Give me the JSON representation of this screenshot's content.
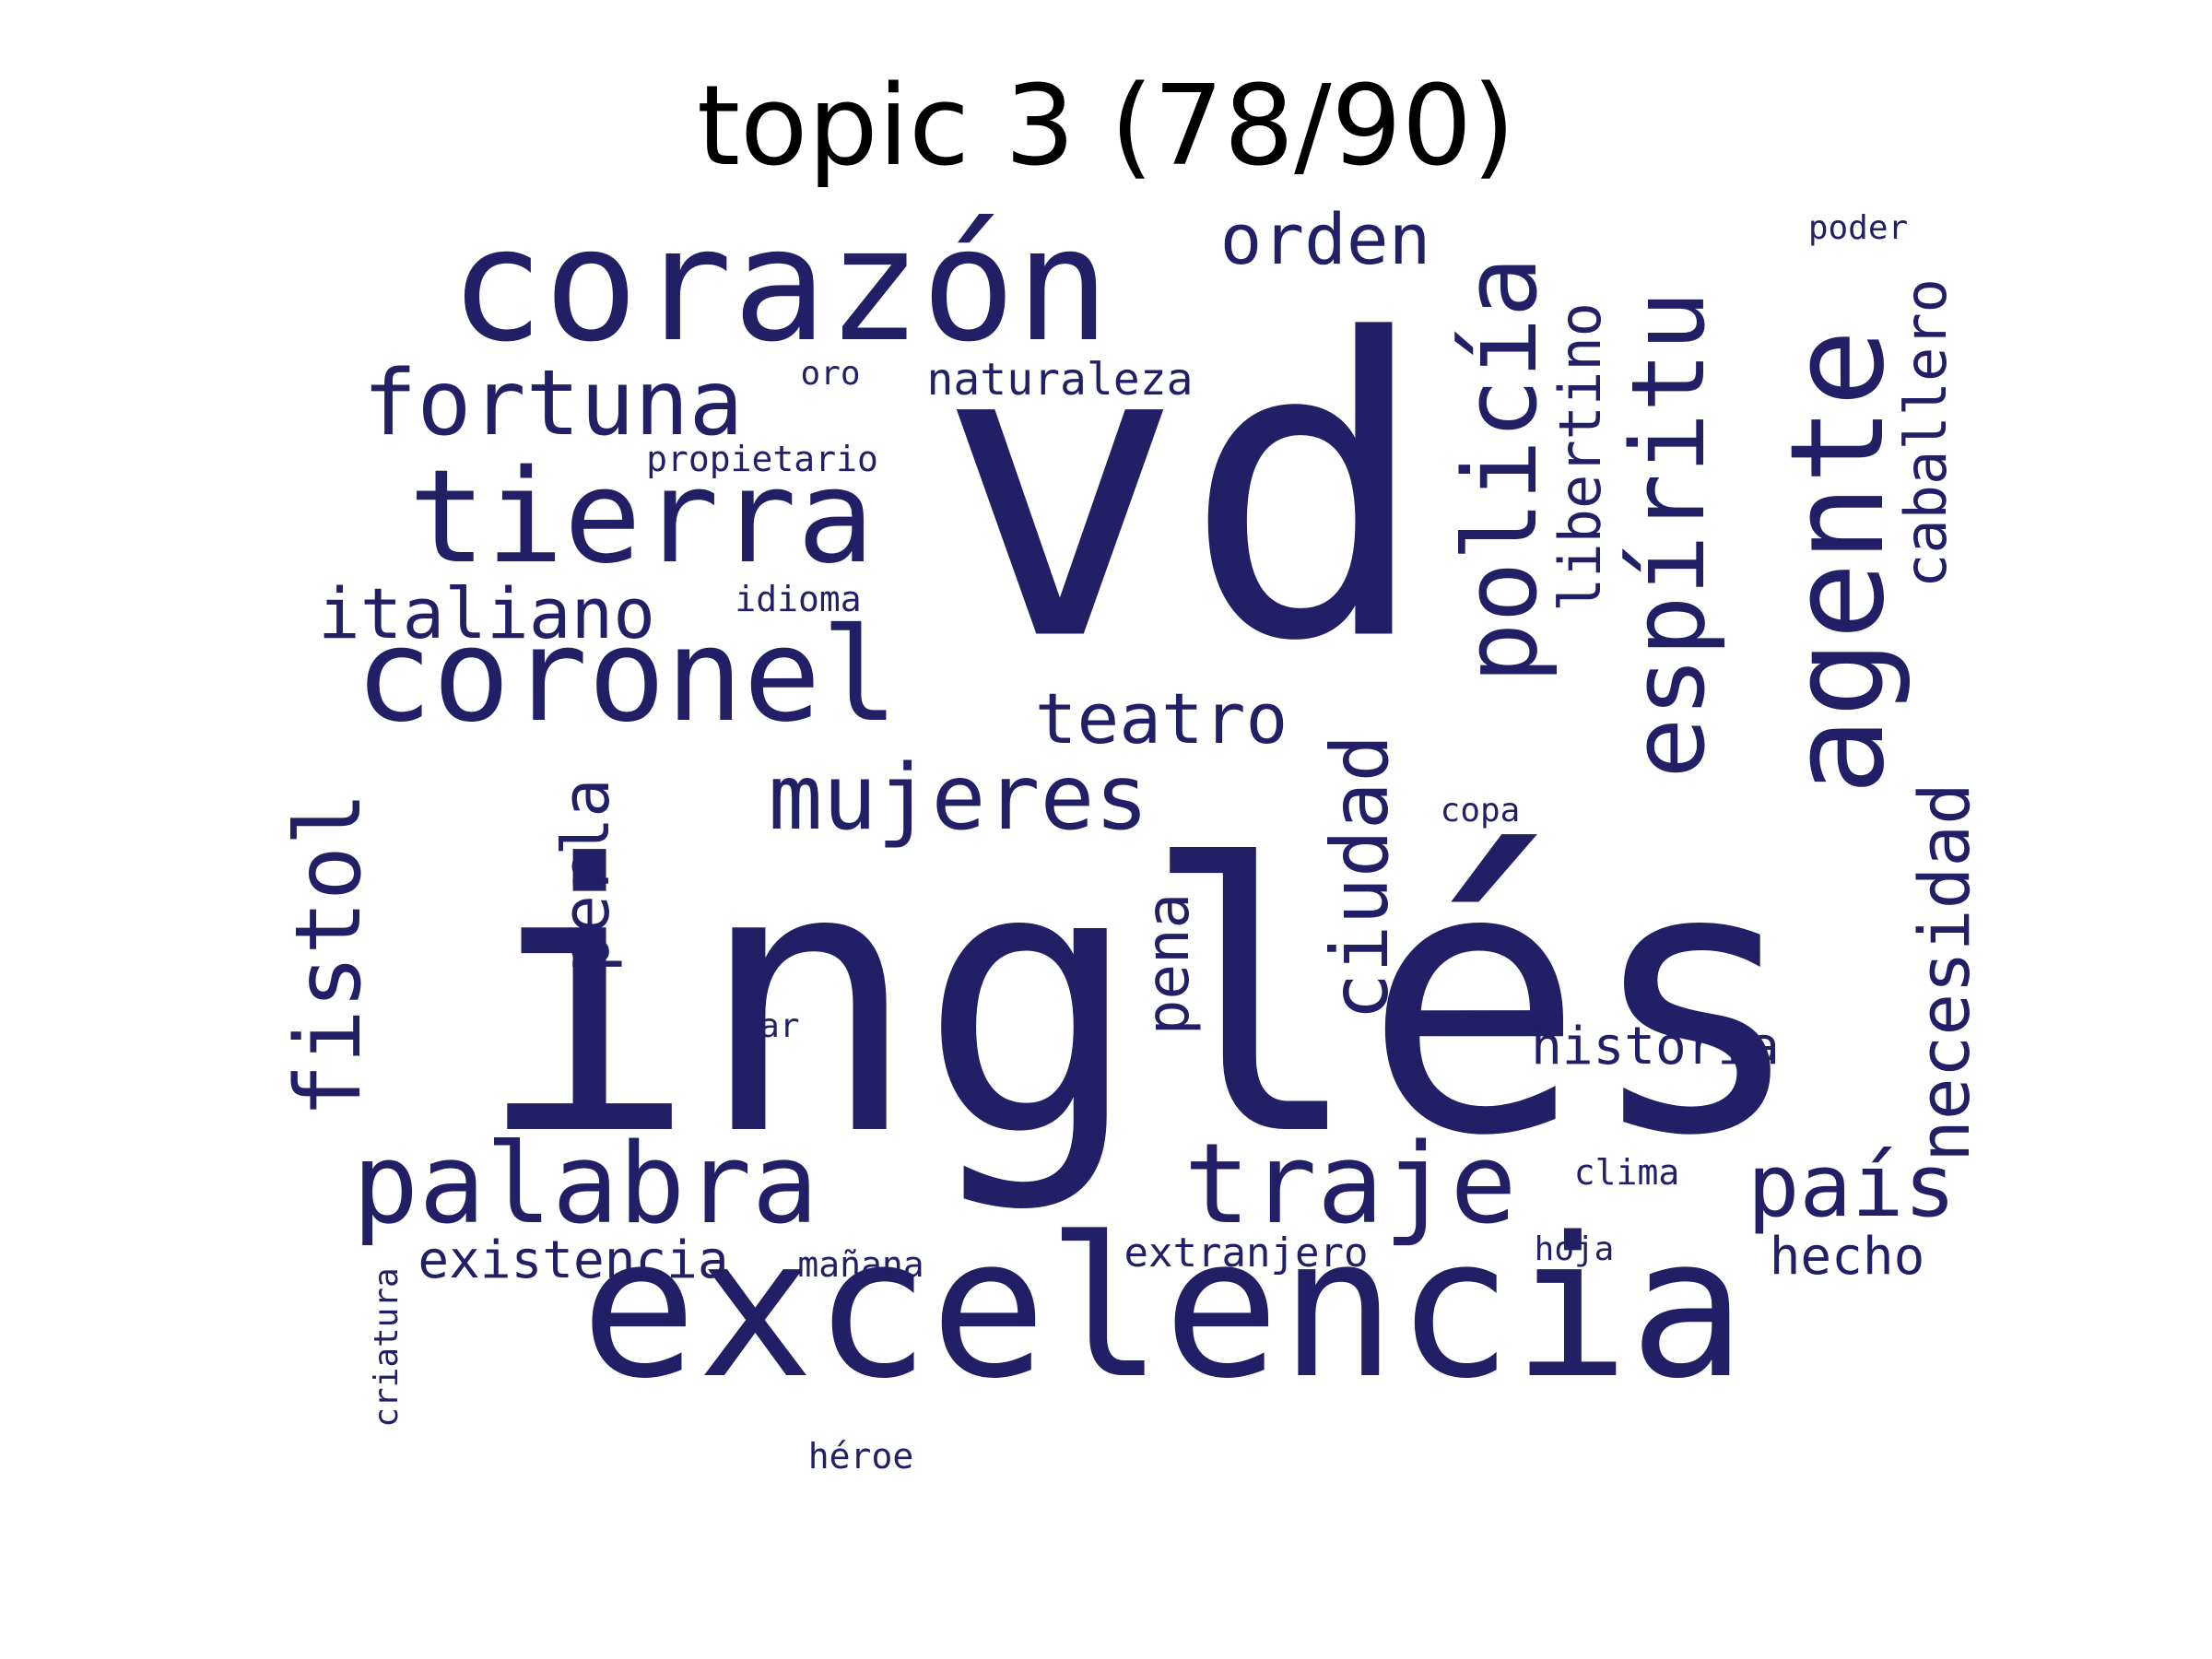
{
  "title": "topic 3 (78/90)",
  "word_color": "#221f66",
  "words": [
    {
      "text": "inglés",
      "orientation": "horizontal"
    },
    {
      "text": "vd",
      "orientation": "horizontal"
    },
    {
      "text": "excelencia",
      "orientation": "horizontal"
    },
    {
      "text": "corazón",
      "orientation": "horizontal"
    },
    {
      "text": "coronel",
      "orientation": "horizontal"
    },
    {
      "text": "tierra",
      "orientation": "horizontal"
    },
    {
      "text": "agente",
      "orientation": "vertical"
    },
    {
      "text": "espíritu",
      "orientation": "vertical"
    },
    {
      "text": "policía",
      "orientation": "vertical"
    },
    {
      "text": "palabra",
      "orientation": "horizontal"
    },
    {
      "text": "traje",
      "orientation": "horizontal"
    },
    {
      "text": "fortuna",
      "orientation": "horizontal"
    },
    {
      "text": "fistol",
      "orientation": "vertical"
    },
    {
      "text": "mujeres",
      "orientation": "horizontal"
    },
    {
      "text": "ciudad",
      "orientation": "vertical"
    },
    {
      "text": "país",
      "orientation": "horizontal"
    },
    {
      "text": "necesidad",
      "orientation": "vertical"
    },
    {
      "text": "italiano",
      "orientation": "horizontal"
    },
    {
      "text": "libertino",
      "orientation": "vertical"
    },
    {
      "text": "caballero",
      "orientation": "vertical"
    },
    {
      "text": "teatro",
      "orientation": "horizontal"
    },
    {
      "text": "orden",
      "orientation": "horizontal"
    },
    {
      "text": "perla",
      "orientation": "vertical"
    },
    {
      "text": "pena",
      "orientation": "vertical"
    },
    {
      "text": "existencia",
      "orientation": "horizontal"
    },
    {
      "text": "historia",
      "orientation": "horizontal"
    },
    {
      "text": "hecho",
      "orientation": "horizontal"
    },
    {
      "text": "naturaleza",
      "orientation": "horizontal"
    },
    {
      "text": "extranjero",
      "orientation": "horizontal"
    },
    {
      "text": "propietario",
      "orientation": "horizontal"
    },
    {
      "text": "idioma",
      "orientation": "horizontal"
    },
    {
      "text": "mañana",
      "orientation": "horizontal"
    },
    {
      "text": "clima",
      "orientation": "horizontal"
    },
    {
      "text": "héroe",
      "orientation": "horizontal"
    },
    {
      "text": "oro",
      "orientation": "horizontal"
    },
    {
      "text": "poder",
      "orientation": "horizontal"
    },
    {
      "text": "copa",
      "orientation": "horizontal"
    },
    {
      "text": "par",
      "orientation": "horizontal"
    },
    {
      "text": "hoja",
      "orientation": "horizontal"
    },
    {
      "text": "criatura",
      "orientation": "vertical"
    }
  ]
}
